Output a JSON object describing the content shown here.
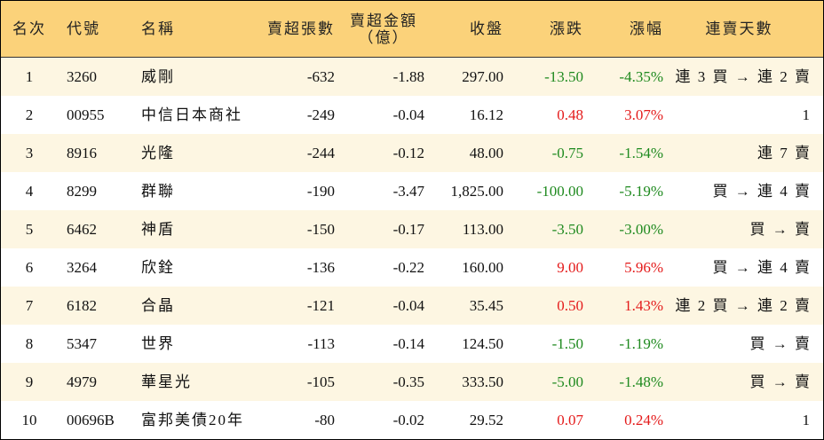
{
  "table": {
    "header": [
      "名次",
      "代號",
      "名稱",
      "賣超張數",
      "賣超金額\n（億）",
      "收盤",
      "漲跌",
      "漲幅",
      "連賣天數"
    ],
    "rows": [
      [
        "1",
        "3260",
        "威剛",
        "-632",
        "-1.88",
        "297.00",
        "-13.50",
        "-4.35%",
        "連 3 買 → 連 2 賣"
      ],
      [
        "2",
        "00955",
        "中信日本商社",
        "-249",
        "-0.04",
        "16.12",
        "0.48",
        "3.07%",
        "1"
      ],
      [
        "3",
        "8916",
        "光隆",
        "-244",
        "-0.12",
        "48.00",
        "-0.75",
        "-1.54%",
        "連 7 賣"
      ],
      [
        "4",
        "8299",
        "群聯",
        "-190",
        "-3.47",
        "1,825.00",
        "-100.00",
        "-5.19%",
        "買 → 連 4 賣"
      ],
      [
        "5",
        "6462",
        "神盾",
        "-150",
        "-0.17",
        "113.00",
        "-3.50",
        "-3.00%",
        "買 → 賣"
      ],
      [
        "6",
        "3264",
        "欣銓",
        "-136",
        "-0.22",
        "160.00",
        "9.00",
        "5.96%",
        "買 → 連 4 賣"
      ],
      [
        "7",
        "6182",
        "合晶",
        "-121",
        "-0.04",
        "35.45",
        "0.50",
        "1.43%",
        "連 2 買 → 連 2 賣"
      ],
      [
        "8",
        "5347",
        "世界",
        "-113",
        "-0.14",
        "124.50",
        "-1.50",
        "-1.19%",
        "買 → 賣"
      ],
      [
        "9",
        "4979",
        "華星光",
        "-105",
        "-0.35",
        "333.50",
        "-5.00",
        "-1.48%",
        "買 → 賣"
      ],
      [
        "10",
        "00696B",
        "富邦美債20年",
        "-80",
        "-0.02",
        "29.52",
        "0.07",
        "0.24%",
        "1"
      ]
    ]
  }
}
